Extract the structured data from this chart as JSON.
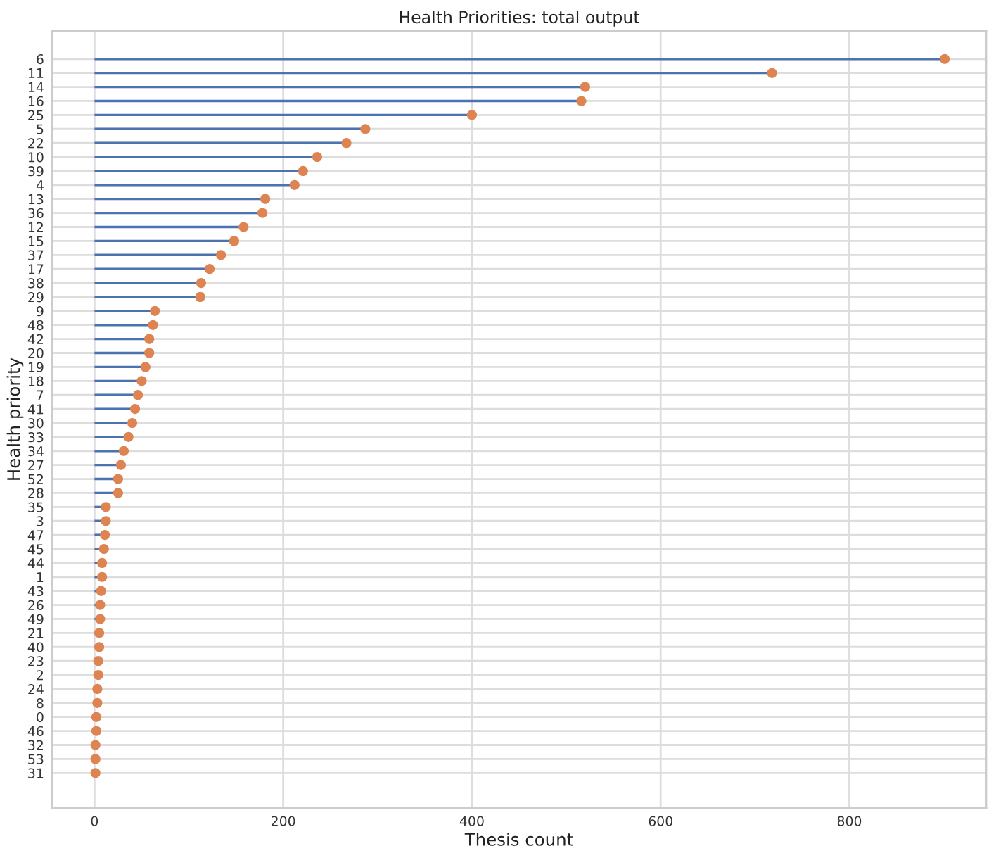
{
  "chart_data": {
    "type": "lollipop",
    "title": "Health Priorities: total output",
    "xlabel": "Thesis count",
    "ylabel": "Health priority",
    "orientation": "horizontal",
    "categories": [
      "6",
      "11",
      "14",
      "16",
      "25",
      "5",
      "22",
      "10",
      "39",
      "4",
      "13",
      "36",
      "12",
      "15",
      "37",
      "17",
      "38",
      "29",
      "9",
      "48",
      "42",
      "20",
      "19",
      "18",
      "7",
      "41",
      "30",
      "33",
      "34",
      "27",
      "52",
      "28",
      "35",
      "3",
      "47",
      "45",
      "44",
      "1",
      "43",
      "26",
      "49",
      "21",
      "40",
      "23",
      "2",
      "24",
      "8",
      "0",
      "46",
      "32",
      "53",
      "31"
    ],
    "series": [
      {
        "color": "#dd8452",
        "values": [
          901,
          718,
          520,
          516,
          400,
          287,
          267,
          236,
          221,
          212,
          181,
          178,
          158,
          148,
          134,
          122,
          113,
          112,
          64,
          62,
          58,
          58,
          54,
          50,
          46,
          43,
          40,
          36,
          31,
          28,
          25,
          25,
          12,
          12,
          11,
          10,
          8,
          8,
          7,
          6,
          6,
          5,
          5,
          4,
          4,
          3,
          3,
          2,
          2,
          1,
          1,
          1
        ]
      }
    ],
    "xlim": [
      -45,
      945
    ],
    "xticks": [
      0,
      200,
      400,
      600,
      800
    ],
    "grid": true,
    "marker": "circle"
  }
}
